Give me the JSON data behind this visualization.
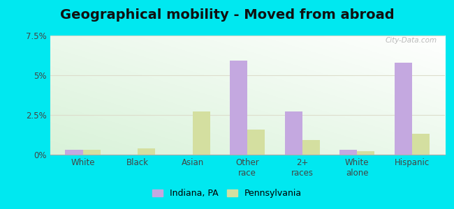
{
  "title": "Geographical mobility - Moved from abroad",
  "categories": [
    "White",
    "Black",
    "Asian",
    "Other\nrace",
    "2+\nraces",
    "White\nalone",
    "Hispanic"
  ],
  "indiana_values": [
    0.3,
    0.0,
    0.0,
    5.9,
    2.7,
    0.3,
    5.8
  ],
  "pennsylvania_values": [
    0.3,
    0.4,
    2.7,
    1.6,
    0.9,
    0.2,
    1.3
  ],
  "indiana_color": "#c4a8e0",
  "pennsylvania_color": "#d4dfa0",
  "ylim": [
    0,
    7.5
  ],
  "yticks": [
    0,
    2.5,
    5,
    7.5
  ],
  "ytick_labels": [
    "0%",
    "2.5%",
    "5%",
    "7.5%"
  ],
  "outer_background": "#00e8f0",
  "watermark": "City-Data.com",
  "legend_labels": [
    "Indiana, PA",
    "Pennsylvania"
  ],
  "bar_width": 0.32,
  "title_fontsize": 14,
  "axis_fontsize": 8.5,
  "legend_fontsize": 9
}
